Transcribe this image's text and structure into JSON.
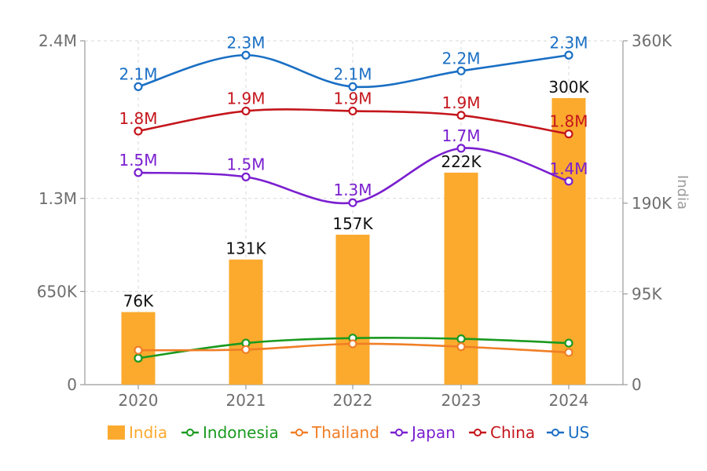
{
  "chart_data": {
    "type": "bar+line",
    "categories": [
      "2020",
      "2021",
      "2022",
      "2023",
      "2024"
    ],
    "left_axis": {
      "ylim": [
        0,
        2400000
      ],
      "tick_values": [
        0,
        650000,
        1300000,
        2400000
      ],
      "tick_labels": [
        "0",
        "650K",
        "1.3M",
        "2.4M"
      ]
    },
    "right_axis": {
      "label": "India",
      "ylim": [
        0,
        360000
      ],
      "tick_values": [
        0,
        95000,
        190000,
        360000
      ],
      "tick_labels": [
        "0",
        "95K",
        "190K",
        "360K"
      ]
    },
    "bar_series": {
      "name": "India",
      "axis": "right",
      "color": "#FBAA2E",
      "values": [
        76000,
        131000,
        157000,
        222000,
        300000
      ],
      "labels": [
        "76K",
        "131K",
        "157K",
        "222K",
        "300K"
      ]
    },
    "series": [
      {
        "name": "Indonesia",
        "color": "#1A9A1F",
        "values": [
          185000,
          290000,
          325000,
          320000,
          290000
        ],
        "labels": []
      },
      {
        "name": "Thailand",
        "color": "#F07E26",
        "values": [
          240000,
          245000,
          285000,
          265000,
          225000
        ],
        "labels": []
      },
      {
        "name": "Japan",
        "color": "#7A1FCF",
        "values": [
          1480000,
          1450000,
          1270000,
          1650000,
          1420000
        ],
        "labels": [
          "1.5M",
          "1.5M",
          "1.3M",
          "1.7M",
          "1.4M"
        ]
      },
      {
        "name": "China",
        "color": "#C4161C",
        "values": [
          1770000,
          1910000,
          1910000,
          1880000,
          1750000
        ],
        "labels": [
          "1.8M",
          "1.9M",
          "1.9M",
          "1.9M",
          "1.8M"
        ]
      },
      {
        "name": "US",
        "color": "#1A6FC4",
        "values": [
          2080000,
          2300000,
          2080000,
          2190000,
          2300000
        ],
        "labels": [
          "2.1M",
          "2.3M",
          "2.1M",
          "2.2M",
          "2.3M"
        ]
      }
    ],
    "legend": [
      "India",
      "Indonesia",
      "Thailand",
      "Japan",
      "China",
      "US"
    ]
  }
}
